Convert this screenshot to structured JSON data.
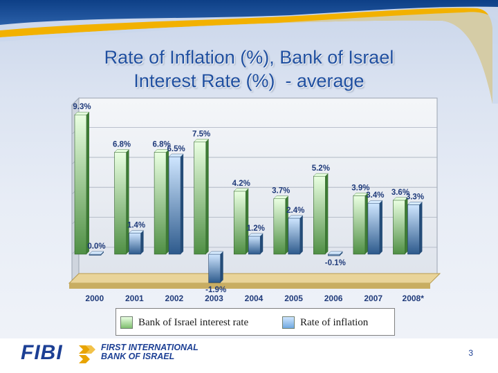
{
  "slide": {
    "title_line1": "Rate of Inflation (%), Bank of Israel",
    "title_line2": "Interest Rate (%)  - average",
    "page_number": "3"
  },
  "footer": {
    "logo_fibi": "FIBI",
    "logo_line1": "FIRST INTERNATIONAL",
    "logo_line2": "BANK OF ISRAEL"
  },
  "chart_data": {
    "type": "bar",
    "categories": [
      "2000",
      "2001",
      "2002",
      "2003",
      "2004",
      "2005",
      "2006",
      "2007",
      "2008*"
    ],
    "series": [
      {
        "name": "Bank of Israel interest rate",
        "values": [
          9.3,
          6.8,
          6.8,
          7.5,
          4.2,
          3.7,
          5.2,
          3.9,
          3.6
        ],
        "labels": [
          "9.3%",
          "6.8%",
          "6.8%",
          "7.5%",
          "4.2%",
          "3.7%",
          "5.2%",
          "3.9%",
          "3.6%"
        ],
        "color": "#7fbf6f"
      },
      {
        "name": "Rate of inflation",
        "values": [
          0.0,
          1.4,
          6.5,
          -1.9,
          1.2,
          2.4,
          -0.1,
          3.4,
          3.3
        ],
        "labels": [
          "0.0%",
          "1.4%",
          "6.5%",
          "-1.9%",
          "1.2%",
          "2.4%",
          "-0.1%",
          "3.4%",
          "3.3%"
        ],
        "color": "#6fa8e0"
      }
    ],
    "ylim": [
      -2,
      10
    ],
    "grid": true,
    "legend_position": "bottom",
    "style": "3d"
  }
}
